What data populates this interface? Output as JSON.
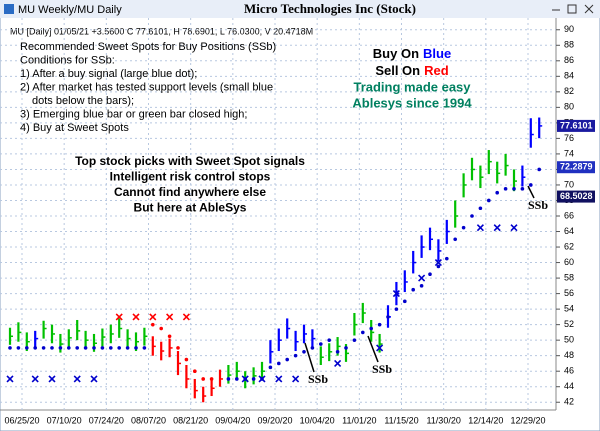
{
  "window_title": "MU Weekly/MU Daily",
  "chart_data": {
    "type": "ohlc",
    "title": "Micro Technologies Inc (Stock)",
    "info_line": "MU [Daily] 01/05/21 +3.5600 C 77.6101, H 78.6901, L 76.0300, V 20.4718M",
    "notes": [
      "Recommended Sweet Spots for Buy Positions (SSb)",
      "Conditions for SSb:",
      "1) After a buy signal (large blue dot);",
      "2) After market has tested support levels (small blue",
      "dots below the bars);",
      "3) Emerging blue bar or green bar closed high;",
      "4) Buy at Sweet Spots"
    ],
    "promo": [
      "Top stock picks with Sweet Spot signals",
      "Intelligent risk control stops",
      "Cannot find anywhere else",
      "But here at AbleSys"
    ],
    "buy_text": [
      "Buy On",
      "Blue"
    ],
    "sell_text": [
      "Sell On",
      "Red"
    ],
    "tagline": [
      "Trading made easy",
      "Ablesys since 1994"
    ],
    "annotations": [
      "SSb",
      "SSb",
      "SSb"
    ],
    "date_labels": [
      "06/25/20",
      "07/10/20",
      "07/24/20",
      "08/07/20",
      "08/21/20",
      "09/04/20",
      "09/20/20",
      "10/04/20",
      "11/01/20",
      "11/15/20",
      "11/30/20",
      "12/14/20",
      "12/29/20"
    ],
    "ylim": [
      41,
      91
    ],
    "yticks": [
      42,
      44,
      46,
      48,
      50,
      52,
      54,
      56,
      58,
      60,
      62,
      64,
      66,
      68,
      70,
      72,
      74,
      76,
      78,
      80,
      82,
      84,
      86,
      88,
      90
    ],
    "grid": true,
    "bars": {
      "high": [
        51.6,
        52.3,
        51,
        51.2,
        52.5,
        52,
        50.8,
        51.4,
        52.6,
        51.2,
        50.8,
        51.5,
        52,
        52.8,
        51.4,
        51,
        51.6,
        50.5,
        49.8,
        50.2,
        48.6,
        46.8,
        45,
        44,
        45,
        46.2,
        46.8,
        47.2,
        46,
        46.5,
        47.2,
        50,
        51.5,
        52.8,
        51.2,
        52,
        51.4,
        49.2,
        49.6,
        50.4,
        49.5,
        53.5,
        54.8,
        52.6,
        50.8,
        54.5,
        57.5,
        59,
        61.5,
        63.5,
        64.5,
        63,
        65.5,
        68,
        71.5,
        73.5,
        72.5,
        74.5,
        73,
        74,
        72,
        72.5,
        78.6,
        78.69
      ],
      "low": [
        49.4,
        49.8,
        48.6,
        49,
        50.2,
        49.6,
        48.4,
        49.1,
        50,
        48.8,
        48.5,
        49.2,
        49.6,
        50.3,
        49,
        48.6,
        49.3,
        48,
        47.4,
        47.8,
        45.5,
        43.8,
        42.5,
        42,
        42.8,
        44,
        44.4,
        44.8,
        43.8,
        44.3,
        45,
        47,
        48.6,
        50.2,
        48.6,
        49.6,
        49,
        46.8,
        47.3,
        48,
        47.2,
        50.6,
        52.2,
        49.8,
        48.4,
        51.6,
        54.5,
        56.2,
        58.6,
        60.6,
        61.6,
        60.2,
        62.4,
        64.5,
        68.4,
        70.6,
        69.6,
        71.4,
        70.2,
        71.2,
        69.2,
        69.8,
        74.8,
        76.03
      ],
      "close": [
        50.5,
        51,
        49.8,
        50.2,
        51.5,
        50.8,
        49.5,
        50.3,
        51.2,
        50,
        49.6,
        50.4,
        50.8,
        51.5,
        50.2,
        49.8,
        50.5,
        49.2,
        48.6,
        49,
        47,
        45,
        43.5,
        42.8,
        43.8,
        45,
        45.5,
        46,
        44.8,
        45.4,
        46,
        48.5,
        50,
        51.5,
        49.8,
        50.8,
        50.2,
        47.8,
        48.5,
        49.2,
        48.3,
        52,
        53.5,
        51,
        49.5,
        53,
        56,
        57.5,
        60,
        62,
        63,
        61.5,
        64,
        66,
        70,
        72,
        71,
        73,
        71.5,
        72.5,
        70.5,
        71,
        76.5,
        77.61
      ],
      "colors": [
        "#00c000",
        "#00c000",
        "#00c000",
        "#0000ff",
        "#00c000",
        "#00c000",
        "#00c000",
        "#00c000",
        "#00c000",
        "#00c000",
        "#00c000",
        "#00c000",
        "#00c000",
        "#00c000",
        "#00c000",
        "#00c000",
        "#00c000",
        "#ff0000",
        "#ff0000",
        "#ff0000",
        "#ff0000",
        "#ff0000",
        "#ff0000",
        "#ff0000",
        "#ff0000",
        "#ff0000",
        "#00c000",
        "#00c000",
        "#00c000",
        "#00c000",
        "#00c000",
        "#0000ff",
        "#0000ff",
        "#0000ff",
        "#0000ff",
        "#0000ff",
        "#0000ff",
        "#00c000",
        "#00c000",
        "#00c000",
        "#00c000",
        "#00c000",
        "#00c000",
        "#00c000",
        "#00c000",
        "#0000ff",
        "#0000ff",
        "#0000ff",
        "#0000ff",
        "#0000ff",
        "#0000ff",
        "#0000ff",
        "#0000ff",
        "#00c000",
        "#00c000",
        "#00c000",
        "#00c000",
        "#00c000",
        "#00c000",
        "#00c000",
        "#00c000",
        "#0000ff",
        "#0000ff",
        "#0000ff"
      ]
    },
    "support": {
      "values": [
        49,
        49,
        49,
        49,
        49,
        49,
        49,
        49,
        49,
        49,
        49,
        49,
        49,
        49,
        49,
        49,
        49,
        52,
        51.5,
        50.5,
        49,
        47.5,
        46,
        45,
        45,
        null,
        45,
        45,
        45,
        45,
        45,
        46.5,
        47,
        47.5,
        48,
        48.5,
        49,
        49.5,
        50,
        48.5,
        49,
        50,
        51,
        51.5,
        52,
        53,
        54,
        55,
        56.5,
        57,
        58.5,
        59.5,
        60.5,
        63,
        64.5,
        66,
        67,
        68,
        69,
        69.5,
        69.5,
        69.5,
        70,
        72
      ],
      "colors": [
        "#0000cc",
        "#0000cc",
        "#0000cc",
        "#0000cc",
        "#0000cc",
        "#0000cc",
        "#0000cc",
        "#0000cc",
        "#0000cc",
        "#0000cc",
        "#0000cc",
        "#0000cc",
        "#0000cc",
        "#0000cc",
        "#0000cc",
        "#0000cc",
        "#0000cc",
        "#ff0000",
        "#ff0000",
        "#ff0000",
        "#ff0000",
        "#ff0000",
        "#ff0000",
        "#ff0000",
        "#ff0000",
        "#ff0000",
        "#0000cc",
        "#0000cc",
        "#0000cc",
        "#0000cc",
        "#0000cc",
        "#0000cc",
        "#0000cc",
        "#0000cc",
        "#0000cc",
        "#0000cc",
        "#0000cc",
        "#0000cc",
        "#0000cc",
        "#0000cc",
        "#0000cc",
        "#0000cc",
        "#0000cc",
        "#0000cc",
        "#0000cc",
        "#0000cc",
        "#0000cc",
        "#0000cc",
        "#0000cc",
        "#0000cc",
        "#0000cc",
        "#0000cc",
        "#0000cc",
        "#0000cc",
        "#0000cc",
        "#0000cc",
        "#0000cc",
        "#0000cc",
        "#0000cc",
        "#0000cc",
        "#0000cc",
        "#0000cc",
        "#0000cc",
        "#0000cc"
      ]
    },
    "stops": {
      "x": [
        0,
        3,
        5,
        8,
        10,
        13,
        15,
        17,
        19,
        21,
        28,
        30,
        32,
        34,
        39,
        44,
        46,
        49,
        51,
        56,
        58,
        60
      ],
      "values": [
        45,
        45,
        45,
        45,
        45,
        53,
        53,
        53,
        53,
        53,
        45,
        45,
        45,
        45,
        47,
        49,
        56,
        58,
        60,
        64.5,
        64.5,
        64.5
      ],
      "colors": [
        "#0000cc",
        "#0000cc",
        "#0000cc",
        "#0000cc",
        "#0000cc",
        "#ff0000",
        "#ff0000",
        "#ff0000",
        "#ff0000",
        "#ff0000",
        "#0000cc",
        "#0000cc",
        "#0000cc",
        "#0000cc",
        "#0000cc",
        "#0000cc",
        "#0000cc",
        "#0000cc",
        "#0000cc",
        "#0000cc",
        "#0000cc",
        "#0000cc"
      ]
    },
    "price_labels": {
      "values": [
        77.6101,
        72.2879,
        68.5028
      ],
      "colors": [
        "#1a1aa0",
        "#2030c0",
        "#101060"
      ]
    }
  }
}
